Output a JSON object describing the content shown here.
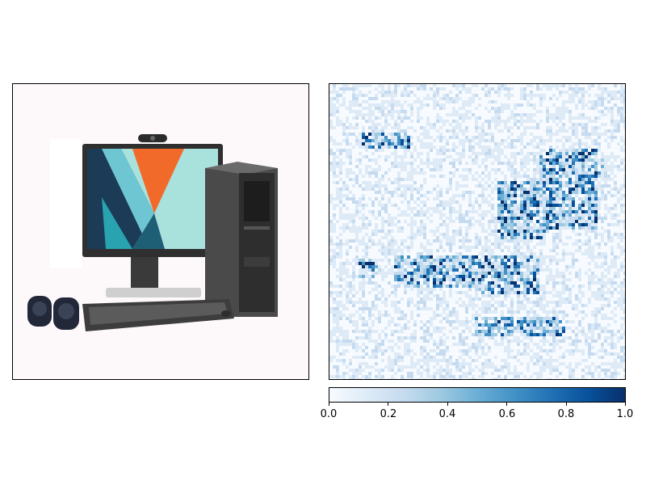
{
  "figure": {
    "left_image": {
      "subject": "desktop computer with monitor, tower, keyboard and speakers"
    },
    "right_image": {
      "subject": "attribution heatmap",
      "colormap": "Blues"
    }
  },
  "chart_data": {
    "type": "heatmap",
    "colormap": "Blues",
    "clim": [
      0.0,
      1.0
    ],
    "colorbar": {
      "orientation": "horizontal",
      "ticks": [
        0.0,
        0.2,
        0.4,
        0.6,
        0.8,
        1.0
      ],
      "tick_labels": [
        "0.0",
        "0.2",
        "0.4",
        "0.6",
        "0.8",
        "1.0"
      ]
    },
    "colors": {
      "low": "#f7fbff",
      "mid": "#4292c6",
      "high": "#08306b"
    }
  }
}
